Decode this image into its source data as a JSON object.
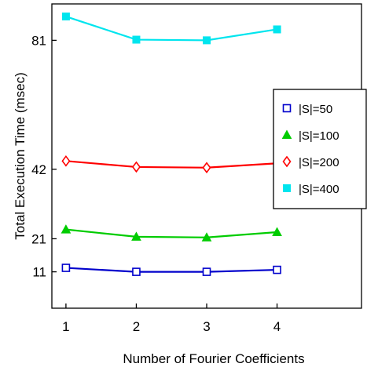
{
  "chart_data": {
    "type": "line",
    "title": "",
    "xlabel": "Number of Fourier Coefficients",
    "ylabel": "Total Execution Time (msec)",
    "x": [
      1,
      2,
      3,
      4
    ],
    "x_ticks": [
      "1",
      "2",
      "3",
      "4"
    ],
    "xlim": [
      0.8,
      5.2
    ],
    "y_ticks": [
      11,
      21,
      42,
      81
    ],
    "ylim": [
      0,
      92
    ],
    "grid": false,
    "legend_position": "right",
    "series": [
      {
        "name": "|S|=50",
        "values": [
          12.2,
          11.0,
          11.0,
          11.6
        ],
        "color": "#0000cc",
        "marker": "square-open"
      },
      {
        "name": "|S|=100",
        "values": [
          23.8,
          21.6,
          21.4,
          23.0
        ],
        "color": "#00cc00",
        "marker": "triangle-filled"
      },
      {
        "name": "|S|=200",
        "values": [
          44.5,
          42.7,
          42.5,
          43.8
        ],
        "color": "#ff0000",
        "marker": "diamond-open"
      },
      {
        "name": "|S|=400",
        "values": [
          88.2,
          81.2,
          81.0,
          84.3
        ],
        "color": "#00e5ee",
        "marker": "square-filled"
      }
    ]
  }
}
